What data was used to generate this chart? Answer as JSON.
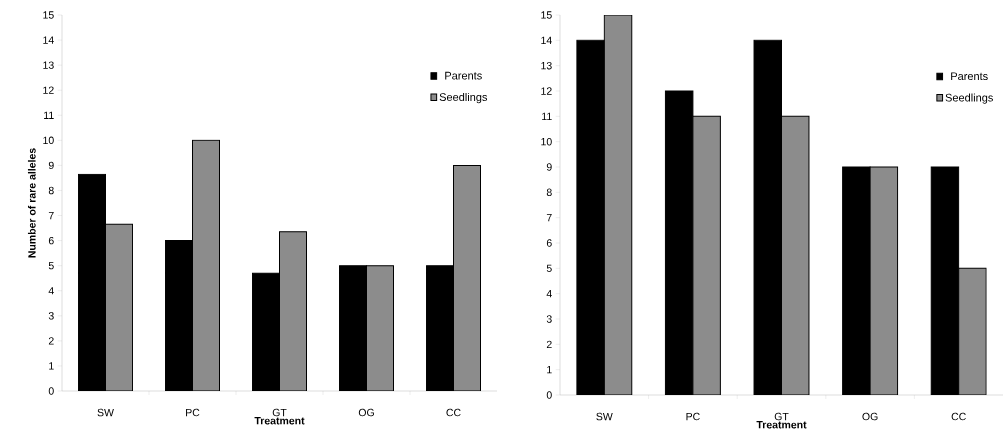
{
  "chart_data": [
    {
      "type": "bar",
      "xlabel": "Treatment",
      "ylabel": "Number of rare alleles",
      "categories": [
        "SW",
        "PC",
        "GT",
        "OG",
        "CC"
      ],
      "ylim": [
        0,
        15
      ],
      "yticks": [
        0,
        1,
        2,
        3,
        4,
        5,
        6,
        7,
        8,
        9,
        10,
        11,
        12,
        13,
        14,
        15
      ],
      "legend": "top right",
      "series": [
        {
          "name": "Parents",
          "color": "#000000",
          "values": [
            8.65,
            6,
            4.7,
            5,
            5
          ]
        },
        {
          "name": "Seedlings",
          "color": "#8c8c8c",
          "values": [
            6.65,
            10,
            6.35,
            5,
            9
          ]
        }
      ]
    },
    {
      "type": "bar",
      "xlabel": "Treatment",
      "categories": [
        "SW",
        "PC",
        "GT",
        "OG",
        "CC"
      ],
      "ylim": [
        0,
        15
      ],
      "yticks": [
        0,
        1,
        2,
        3,
        4,
        5,
        6,
        7,
        8,
        9,
        10,
        11,
        12,
        13,
        14,
        15
      ],
      "legend": "top right",
      "series": [
        {
          "name": "Parents",
          "color": "#000000",
          "values": [
            14,
            12,
            14,
            9,
            9
          ]
        },
        {
          "name": "Seedlings",
          "color": "#8c8c8c",
          "values": [
            15,
            11,
            11,
            9,
            5
          ]
        }
      ]
    }
  ]
}
